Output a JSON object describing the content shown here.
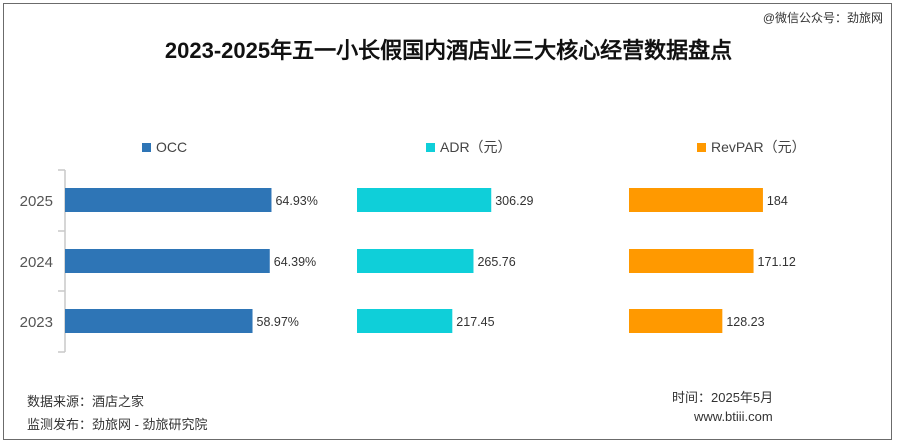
{
  "watermark": "@微信公众号：劲旅网",
  "chart_data": {
    "type": "bar",
    "orientation": "horizontal",
    "title": "2023-2025年五一小长假国内酒店业三大核心经营数据盘点",
    "categories": [
      "2025",
      "2024",
      "2023"
    ],
    "series": [
      {
        "name": "OCC",
        "values": [
          64.93,
          64.39,
          58.97
        ],
        "labels": [
          "64.93%",
          "64.39%",
          "58.97%"
        ],
        "color": "#2e75b6",
        "max": 100
      },
      {
        "name": "ADR（元）",
        "values": [
          306.29,
          265.76,
          217.45
        ],
        "labels": [
          "306.29",
          "265.76",
          "217.45"
        ],
        "color": "#0fcfd9",
        "max": 470
      },
      {
        "name": "RevPAR（元）",
        "values": [
          184,
          171.12,
          128.23
        ],
        "labels": [
          "184",
          "171.12",
          "128.23"
        ],
        "color": "#ff9900",
        "max": 283
      }
    ],
    "grid": false,
    "legend": "top"
  },
  "footer": {
    "source": "数据来源：酒店之家",
    "publisher": "监测发布：劲旅网 - 劲旅研究院",
    "time": "时间：2025年5月",
    "site": "www.btiii.com"
  }
}
